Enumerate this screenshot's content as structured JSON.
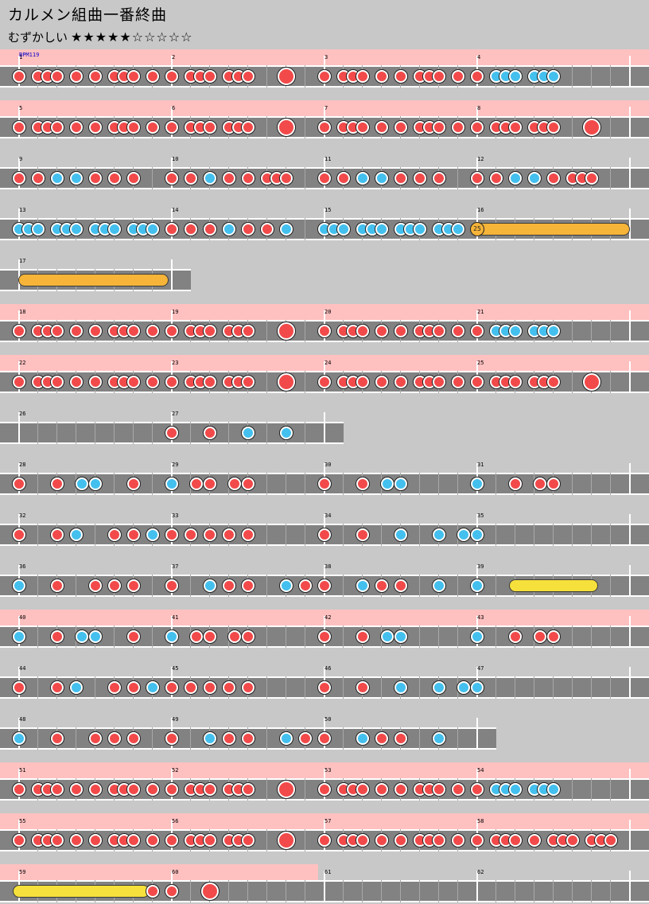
{
  "song": {
    "title": "カルメン組曲一番終曲",
    "difficulty_label": "むずかしい",
    "difficulty_stars": "★★★★★☆☆☆☆☆",
    "bpm_label": "BPM119"
  },
  "measures_per_row": 4,
  "beats_per_measure": 8,
  "colors": {
    "gogo": "#ffc0c0",
    "lane": "#828282",
    "don": "#f24a4a",
    "ka": "#44c0ee",
    "background": "#c8c8c8"
  },
  "rows": [
    {
      "measures": [
        1,
        2,
        3,
        4
      ],
      "gogo": true,
      "notes": "d,0;d,1;d,1.5;d,2;d,3;d,4;d,5;d,5.5;d,6;d,7|d,0;d,1;d,1.5;d,2;d,3;d,3.5;d,4;D,6|d,0;d,1;d,1.5;d,2;d,3;d,4;d,5;d,5.5;d,6;d,7|d,0;k,1;k,1.5;k,2;k,3;k,3.5;k,4"
    },
    {
      "measures": [
        5,
        6,
        7,
        8
      ],
      "gogo": true,
      "notes": "d,0;d,1;d,1.5;d,2;d,3;d,4;d,5;d,5.5;d,6;d,7|d,0;d,1;d,1.5;d,2;d,3;d,3.5;d,4;D,6|d,0;d,1;d,1.5;d,2;d,3;d,4;d,5;d,5.5;d,6;d,7|d,0;d,1;d,1.5;d,2;d,3;d,3.5;d,4;D,6"
    },
    {
      "measures": [
        9,
        10,
        11,
        12
      ],
      "gogo": false,
      "notes": "d,0;d,1;k,2;k,3;d,4;d,5;d,6|d,0;d,1;k,2;d,3;d,4;d,5;d,5.5;d,6|d,0;d,1;k,2;k,3;d,4;d,5;d,6|d,0;d,1;k,2;k,3;d,4;d,5;d,5.5;d,6"
    },
    {
      "measures": [
        13,
        14,
        15,
        16
      ],
      "gogo": false,
      "notes": "k,0;k,0.5;k,1;k,2;k,2.5;k,3;k,4;k,4.5;k,5;k,6;k,6.5;k,7|d,0;d,1;d,2;k,3;d,4;d,5;k,6|k,0;k,0.5;k,1;k,2;k,2.5;k,3;k,4;k,4.5;k,5;k,6;k,6.5;k,7|",
      "balloon": {
        "measure_index": 3,
        "label": "25"
      }
    },
    {
      "measures": [
        17
      ],
      "gogo": false,
      "notes": "",
      "roll": {
        "type": "balloon",
        "start_beat": 0,
        "end_beat": 7.2
      }
    },
    {
      "measures": [
        18,
        19,
        20,
        21
      ],
      "gogo": true,
      "notes": "d,0;d,1;d,1.5;d,2;d,3;d,4;d,5;d,5.5;d,6;d,7|d,0;d,1;d,1.5;d,2;d,3;d,3.5;d,4;D,6|d,0;d,1;d,1.5;d,2;d,3;d,4;d,5;d,5.5;d,6;d,7|d,0;k,1;k,1.5;k,2;k,3;k,3.5;k,4"
    },
    {
      "measures": [
        22,
        23,
        24,
        25
      ],
      "gogo": true,
      "notes": "d,0;d,1;d,1.5;d,2;d,3;d,4;d,5;d,5.5;d,6;d,7|d,0;d,1;d,1.5;d,2;d,3;d,3.5;d,4;D,6|d,0;d,1;d,1.5;d,2;d,3;d,4;d,5;d,5.5;d,6;d,7|d,0;d,1;d,1.5;d,2;d,3;d,3.5;d,4;D,6"
    },
    {
      "measures": [
        26,
        27
      ],
      "gogo": false,
      "notes": "|d,0;d,2;k,4;k,6"
    },
    {
      "measures": [
        28,
        29,
        30,
        31
      ],
      "gogo": false,
      "notes": "d,0;d,2;k,3.3;k,4;d,6|k,0;d,1.3;d,2;d,3.3;d,4|d,0;d,2;k,3.3;k,4|k,0;d,2;d,3.3;d,4"
    },
    {
      "measures": [
        32,
        33,
        34,
        35
      ],
      "gogo": false,
      "notes": "d,0;d,2;k,3;d,5;d,6;k,7|d,0;d,1;d,2;d,3;d,4|d,0;d,2;k,4;k,6;k,7.3;k,8"
    },
    {
      "measures": [
        36,
        37,
        38,
        39
      ],
      "gogo": false,
      "notes": "k,0;d,2;d,4;d,5;d,6|d,0;k,2;d,3;d,4;k,6;d,7|d,0;k,2;d,3;d,4;k,6|k,0",
      "roll": {
        "type": "drumroll",
        "measure_index": 3,
        "start_beat": 2,
        "end_beat": 6
      }
    },
    {
      "measures": [
        40,
        41,
        42,
        43
      ],
      "gogo": true,
      "notes": "k,0;d,2;k,3.3;k,4;d,6|k,0;d,1.3;d,2;d,3.3;d,4|d,0;d,2;k,3.3;k,4|k,0;d,2;d,3.3;d,4"
    },
    {
      "measures": [
        44,
        45,
        46,
        47
      ],
      "gogo": false,
      "notes": "d,0;d,2;k,3;d,5;d,6;k,7|d,0;d,1;d,2;d,3;d,4|d,0;d,2;k,4;k,6;k,7.3;k,8"
    },
    {
      "measures": [
        48,
        49,
        50
      ],
      "gogo": false,
      "notes": "k,0;d,2;d,4;d,5;d,6|d,0;k,2;d,3;d,4;k,6;d,7|d,0;k,2;d,3;d,4;k,6"
    },
    {
      "measures": [
        51,
        52,
        53,
        54
      ],
      "gogo": true,
      "notes": "d,0;d,1;d,1.5;d,2;d,3;d,4;d,5;d,5.5;d,6;d,7|d,0;d,1;d,1.5;d,2;d,3;d,3.5;d,4;D,6|d,0;d,1;d,1.5;d,2;d,3;d,4;d,5;d,5.5;d,6;d,7|d,0;k,1;k,1.5;k,2;k,3;k,3.5;k,4"
    },
    {
      "measures": [
        55,
        56,
        57,
        58
      ],
      "gogo": true,
      "notes": "d,0;d,1;d,1.5;d,2;d,3;d,4;d,5;d,5.5;d,6;d,7|d,0;d,1;d,1.5;d,2;d,3;d,3.5;d,4;D,6|d,0;d,1;d,1.5;d,2;d,3;d,4;d,5;d,5.5;d,6;d,7|d,0;d,1;d,1.5;d,2;d,3;d,4;d,4.5;d,5;d,6;d,6.5;d,7"
    },
    {
      "measures": [
        59,
        60,
        61,
        62
      ],
      "gogo_measures": [
        0,
        1
      ],
      "notes": "d,7|d,0;D,2",
      "roll": {
        "type": "drumroll",
        "measure_index": 0,
        "start_beat": 0,
        "end_beat": 6.5
      }
    }
  ]
}
